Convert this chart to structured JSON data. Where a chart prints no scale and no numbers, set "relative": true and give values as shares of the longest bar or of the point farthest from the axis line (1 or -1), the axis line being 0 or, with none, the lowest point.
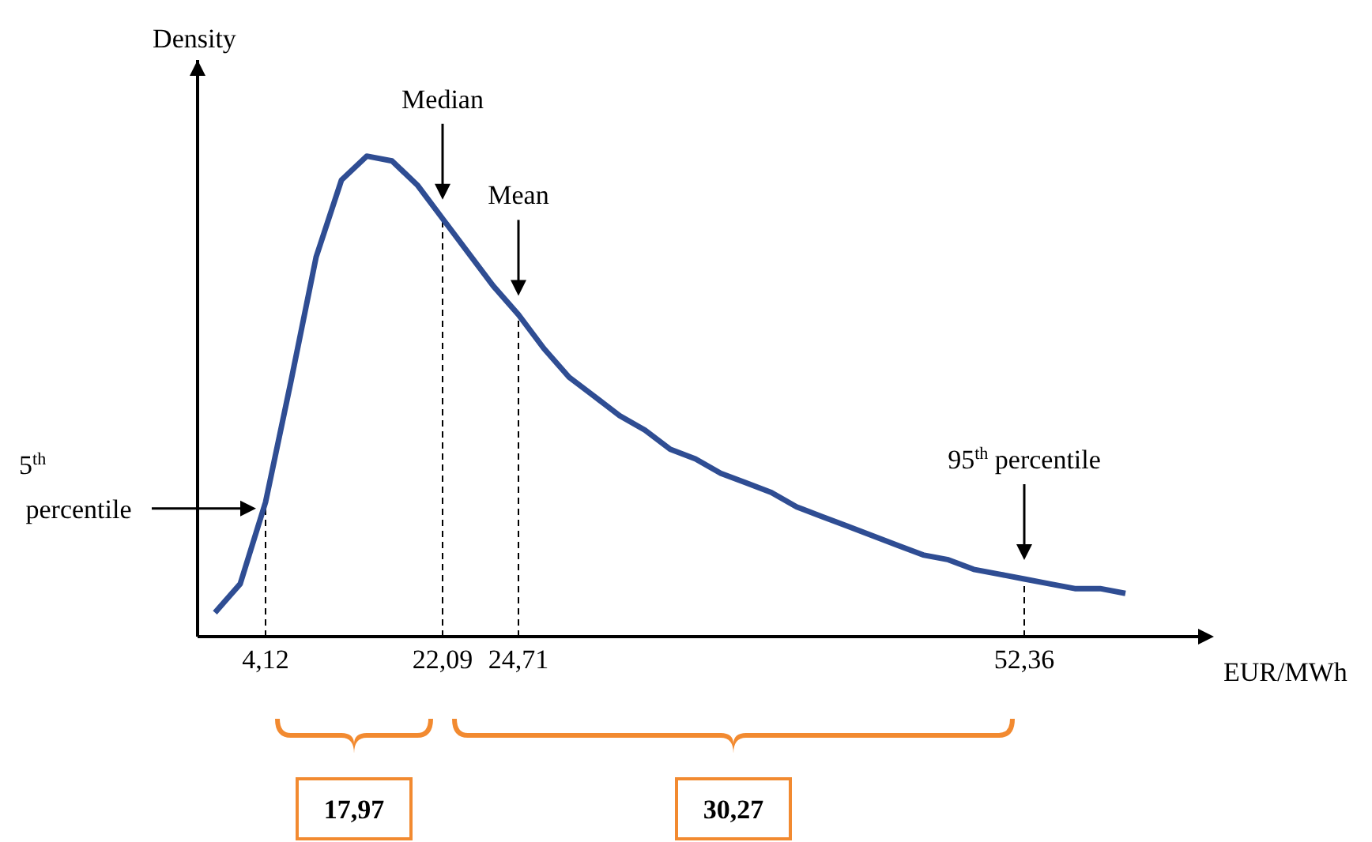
{
  "chart_data": {
    "type": "line",
    "relative": true,
    "xlabel": "EUR/MWh",
    "ylabel": "Density",
    "categories": [
      null,
      null,
      "4,12",
      null,
      null,
      null,
      null,
      null,
      null,
      "22,09",
      null,
      null,
      "24,71",
      null,
      null,
      null,
      null,
      null,
      null,
      null,
      null,
      null,
      null,
      null,
      null,
      null,
      null,
      null,
      null,
      null,
      null,
      null,
      "52,36",
      null,
      null,
      null,
      null
    ],
    "series": [
      {
        "color": "#2f4d93",
        "values": [
          0.05,
          0.11,
          0.28,
          0.53,
          0.79,
          0.95,
          1.0,
          0.99,
          0.94,
          0.87,
          0.8,
          0.73,
          0.67,
          0.6,
          0.54,
          0.5,
          0.46,
          0.43,
          0.39,
          0.37,
          0.34,
          0.32,
          0.3,
          0.27,
          0.25,
          0.23,
          0.21,
          0.19,
          0.17,
          0.16,
          0.14,
          0.13,
          0.12,
          0.11,
          0.1,
          0.1,
          0.09
        ]
      }
    ],
    "ref_lines": [
      {
        "axis": "x",
        "value": "4,12",
        "color": "#000000",
        "line_style": "dashed"
      },
      {
        "axis": "x",
        "value": "22,09",
        "color": "#000000",
        "line_style": "dashed"
      },
      {
        "axis": "x",
        "value": "24,71",
        "color": "#000000",
        "line_style": "dashed"
      },
      {
        "axis": "x",
        "value": "52,36",
        "color": "#000000",
        "line_style": "dashed"
      }
    ],
    "annotations": [
      "17,97",
      "30,27",
      "5$^{th}$ percentile",
      "Median",
      "Mean",
      "95$^{th}$ percentile"
    ],
    "grid": false,
    "legend": false,
    "marker": "none",
    "line_style": "solid"
  }
}
